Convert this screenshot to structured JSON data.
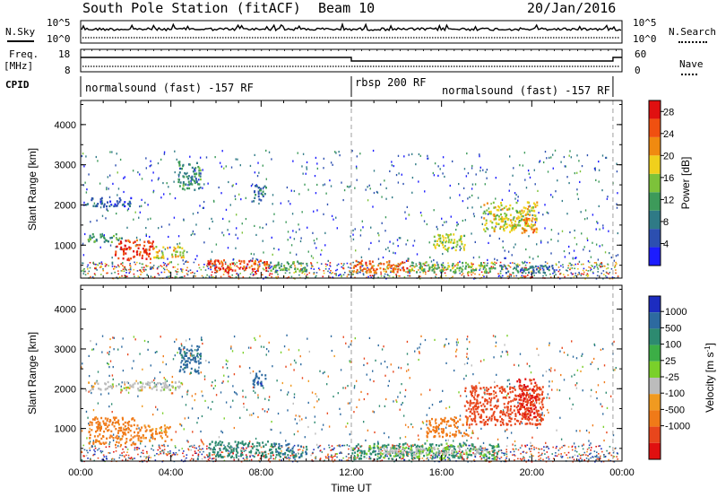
{
  "header": {
    "station": "South Pole Station (fitACF)",
    "beam": "Beam 10",
    "date": "20/Jan/2016"
  },
  "top_panels": {
    "nsky_label": "N.Sky",
    "nsky_ticks": [
      "10^5",
      "10^0"
    ],
    "nsearch_label": "N.Search",
    "nsearch_ticks": [
      "10^5",
      "10^0"
    ],
    "freq_label": "Freq.",
    "freq_unit": "[MHz]",
    "freq_ticks": [
      "18",
      "8"
    ],
    "nave_label": "Nave",
    "nave_ticks": [
      "60",
      "0"
    ],
    "cpid_label": "CPID",
    "modes": [
      {
        "label": "normalsound (fast) -157 RF",
        "start": "00:00",
        "end": "12:00"
      },
      {
        "label": "rbsp 200 RF",
        "start": "12:00",
        "end": "16:00"
      },
      {
        "label": "normalsound (fast) -157 RF",
        "start": "16:00",
        "end": "23:40"
      }
    ]
  },
  "colors": {
    "power_scale": [
      "#1c1cff",
      "#2c4fb0",
      "#2f7a86",
      "#3d9a5a",
      "#7dc23a",
      "#f0d01c",
      "#f08a10",
      "#f05010",
      "#e01010"
    ],
    "velocity_scale": [
      "#1c2cc0",
      "#2d6aa0",
      "#2d8a70",
      "#3cae46",
      "#7ad02a",
      "#bcbcbc",
      "#f09a20",
      "#f07a18",
      "#e8461c",
      "#e01010"
    ]
  },
  "chart_data": [
    {
      "type": "heatmap",
      "name": "Power",
      "ylabel": "Slant Range [km]",
      "xlabel": "Time UT",
      "xlim": [
        "00:00",
        "24:00"
      ],
      "ylim": [
        180,
        4600
      ],
      "x_ticks": [
        "00:00",
        "04:00",
        "08:00",
        "12:00",
        "16:00",
        "20:00",
        "00:00"
      ],
      "y_ticks": [
        1000,
        2000,
        3000,
        4000
      ],
      "colorbar": {
        "label": "Power [dB]",
        "ticks": [
          4,
          8,
          12,
          16,
          20,
          24,
          28
        ],
        "range": [
          0,
          30
        ]
      },
      "patches": [
        {
          "t0": 0.2,
          "t1": 2.2,
          "r0": 1980,
          "r1": 2200,
          "value": 6
        },
        {
          "t0": 0.3,
          "t1": 1.8,
          "r0": 1100,
          "r1": 1300,
          "value": 11
        },
        {
          "t0": 1.5,
          "t1": 3.2,
          "r0": 650,
          "r1": 1150,
          "value": 26
        },
        {
          "t0": 3.2,
          "t1": 4.6,
          "r0": 700,
          "r1": 1000,
          "value": 18
        },
        {
          "t0": 5.6,
          "t1": 8.3,
          "r0": 350,
          "r1": 650,
          "value": 26
        },
        {
          "t0": 8.3,
          "t1": 10.0,
          "r0": 350,
          "r1": 620,
          "value": 12
        },
        {
          "t0": 12.0,
          "t1": 14.5,
          "r0": 330,
          "r1": 640,
          "value": 24
        },
        {
          "t0": 14.5,
          "t1": 18.5,
          "r0": 350,
          "r1": 600,
          "value": 14
        },
        {
          "t0": 18.5,
          "t1": 21.0,
          "r0": 330,
          "r1": 520,
          "value": 8
        },
        {
          "t0": 17.8,
          "t1": 20.2,
          "r0": 1350,
          "r1": 2100,
          "value": 17
        },
        {
          "t0": 19.5,
          "t1": 20.2,
          "r0": 1300,
          "r1": 1700,
          "value": 22
        },
        {
          "t0": 4.3,
          "t1": 5.3,
          "r0": 2400,
          "r1": 3100,
          "value": 10
        },
        {
          "t0": 7.6,
          "t1": 8.2,
          "r0": 2100,
          "r1": 2500,
          "value": 9
        },
        {
          "t0": 15.5,
          "t1": 17.0,
          "r0": 900,
          "r1": 1300,
          "value": 16
        }
      ]
    },
    {
      "type": "heatmap",
      "name": "Velocity",
      "ylabel": "Slant Range [km]",
      "xlabel": "Time UT",
      "xlim": [
        "00:00",
        "24:00"
      ],
      "ylim": [
        180,
        4600
      ],
      "x_ticks": [
        "00:00",
        "04:00",
        "08:00",
        "12:00",
        "16:00",
        "20:00",
        "00:00"
      ],
      "y_ticks": [
        1000,
        2000,
        3000,
        4000
      ],
      "colorbar": {
        "label": "Velocity [m s^-1]",
        "ticks": [
          "1000",
          "500",
          "100",
          "25",
          "-25",
          "-100",
          "-500",
          "-1000"
        ]
      },
      "patches": [
        {
          "t0": 0.2,
          "t1": 4.5,
          "r0": 1980,
          "r1": 2200,
          "value": 0
        },
        {
          "t0": 0.3,
          "t1": 2.4,
          "r0": 600,
          "r1": 1300,
          "value": -150
        },
        {
          "t0": 2.4,
          "t1": 4.0,
          "r0": 700,
          "r1": 1100,
          "value": -120
        },
        {
          "t0": 5.6,
          "t1": 8.5,
          "r0": 300,
          "r1": 700,
          "value": 200
        },
        {
          "t0": 8.5,
          "t1": 10.0,
          "r0": 300,
          "r1": 650,
          "value": 300
        },
        {
          "t0": 12.0,
          "t1": 18.5,
          "r0": 250,
          "r1": 650,
          "value": 120
        },
        {
          "t0": 13.0,
          "t1": 18.0,
          "r0": 350,
          "r1": 550,
          "value": 10
        },
        {
          "t0": 17.0,
          "t1": 20.5,
          "r0": 1100,
          "r1": 2100,
          "value": -500
        },
        {
          "t0": 19.3,
          "t1": 20.2,
          "r0": 1300,
          "r1": 2300,
          "value": -900
        },
        {
          "t0": 4.3,
          "t1": 5.3,
          "r0": 2400,
          "r1": 3100,
          "value": 400
        },
        {
          "t0": 7.6,
          "t1": 8.2,
          "r0": 2100,
          "r1": 2500,
          "value": 600
        },
        {
          "t0": 15.3,
          "t1": 17.2,
          "r0": 800,
          "r1": 1300,
          "value": -200
        }
      ]
    }
  ]
}
